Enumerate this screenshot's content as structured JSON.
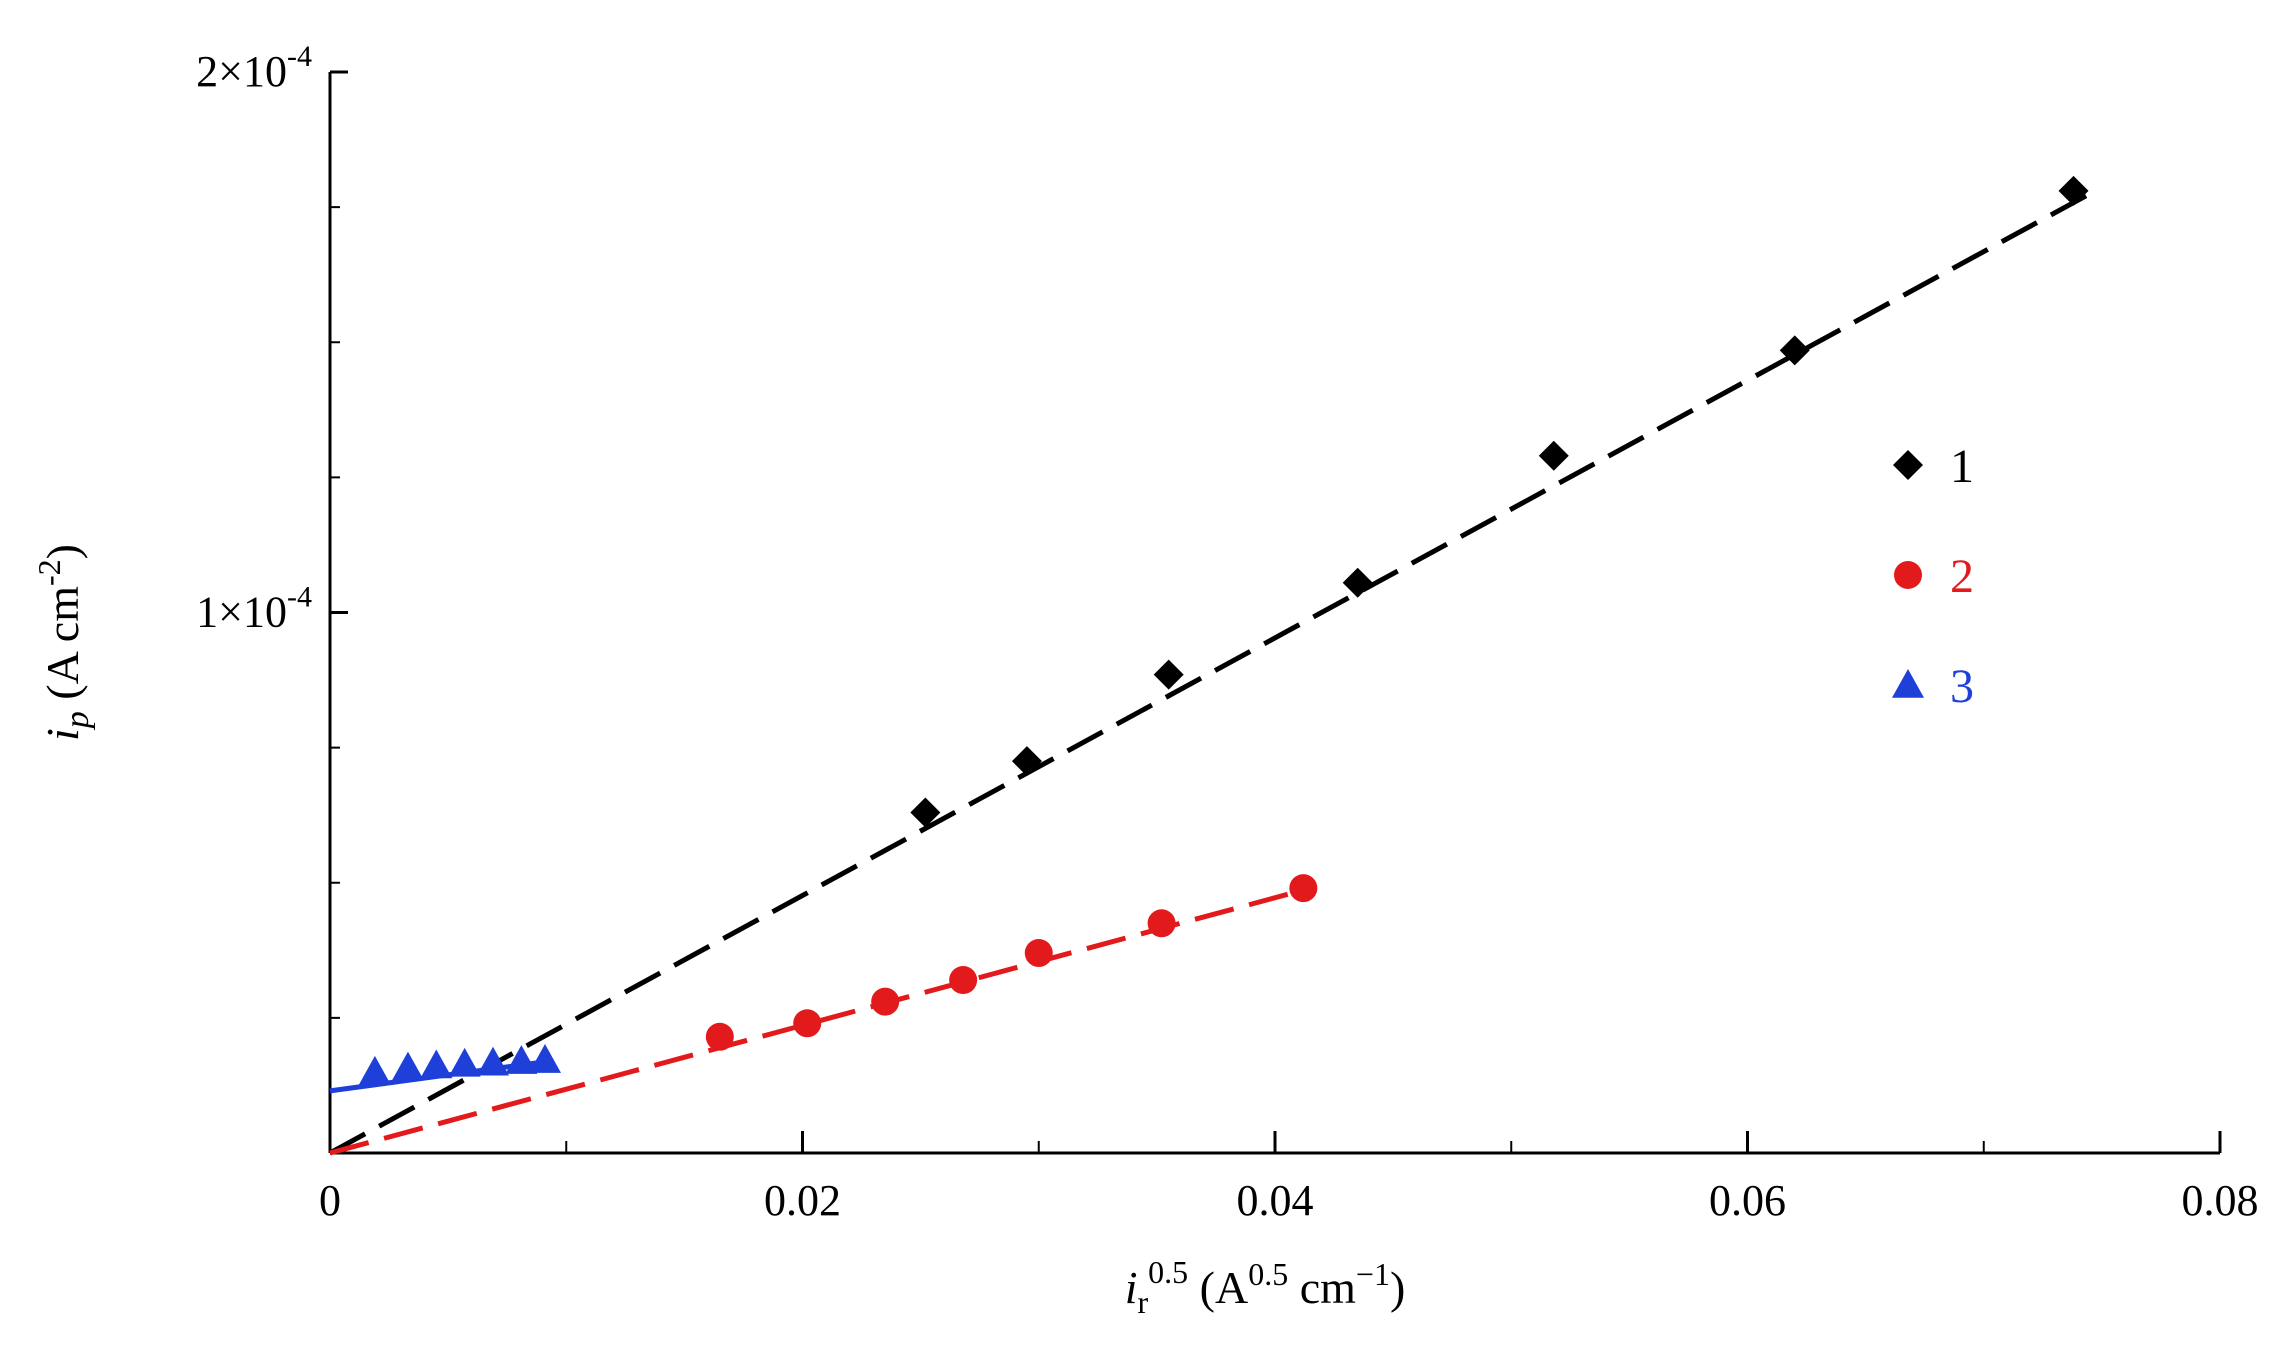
{
  "chart_data": {
    "type": "scatter",
    "xlabel": {
      "main": "i",
      "sub": "r",
      "sup": "0.5",
      "unit_open": " (A",
      "unit_sup": "0.5",
      "unit_rest": " cm",
      "unit_sup2": "−1",
      "unit_close": ")"
    },
    "ylabel": {
      "main": "i",
      "sub": "p",
      "unit_open": " (A cm",
      "unit_sup": "-2",
      "unit_close": ")"
    },
    "xlim": [
      0,
      0.08
    ],
    "ylim": [
      0,
      0.0002
    ],
    "x_ticks": [
      {
        "value": 0,
        "label": "0"
      },
      {
        "value": 0.02,
        "label": "0.02"
      },
      {
        "value": 0.04,
        "label": "0.04"
      },
      {
        "value": 0.06,
        "label": "0.06"
      },
      {
        "value": 0.08,
        "label": "0.08"
      }
    ],
    "y_ticks": [
      {
        "value": 0.0001,
        "label_base": "1×10",
        "label_exp": "-4"
      },
      {
        "value": 0.0002,
        "label_base": "2×10",
        "label_exp": "-4"
      }
    ],
    "grid": false,
    "legend_position": "right",
    "series": [
      {
        "name": "1",
        "color": "#000000",
        "marker": "diamond",
        "line_style": "dashed",
        "fit_x": [
          0,
          0.0745
        ],
        "fit_y": [
          0,
          0.0001775
        ],
        "points": [
          [
            0.0252,
            6.3e-05
          ],
          [
            0.0295,
            7.25e-05
          ],
          [
            0.0355,
            8.85e-05
          ],
          [
            0.0435,
            0.0001055
          ],
          [
            0.0518,
            0.000129
          ],
          [
            0.062,
            0.0001485
          ],
          [
            0.0738,
            0.000178
          ]
        ]
      },
      {
        "name": "2",
        "color": "#e31a1c",
        "marker": "circle",
        "line_style": "dashed",
        "fit_x": [
          0,
          0.0415
        ],
        "fit_y": [
          0,
          4.9e-05
        ],
        "points": [
          [
            0.0165,
            2.15e-05
          ],
          [
            0.0202,
            2.4e-05
          ],
          [
            0.0235,
            2.8e-05
          ],
          [
            0.0268,
            3.2e-05
          ],
          [
            0.03,
            3.7e-05
          ],
          [
            0.0352,
            4.25e-05
          ],
          [
            0.0412,
            4.9e-05
          ]
        ]
      },
      {
        "name": "3",
        "color": "#1f3fd9",
        "marker": "triangle",
        "line_style": "solid",
        "fit_x": [
          0,
          0.0093
        ],
        "fit_y": [
          1.15e-05,
          1.7e-05
        ],
        "points": [
          [
            0.0019,
            1.5e-05
          ],
          [
            0.0033,
            1.58e-05
          ],
          [
            0.0045,
            1.62e-05
          ],
          [
            0.0057,
            1.65e-05
          ],
          [
            0.0069,
            1.67e-05
          ],
          [
            0.0081,
            1.7e-05
          ],
          [
            0.0091,
            1.72e-05
          ]
        ]
      }
    ]
  }
}
